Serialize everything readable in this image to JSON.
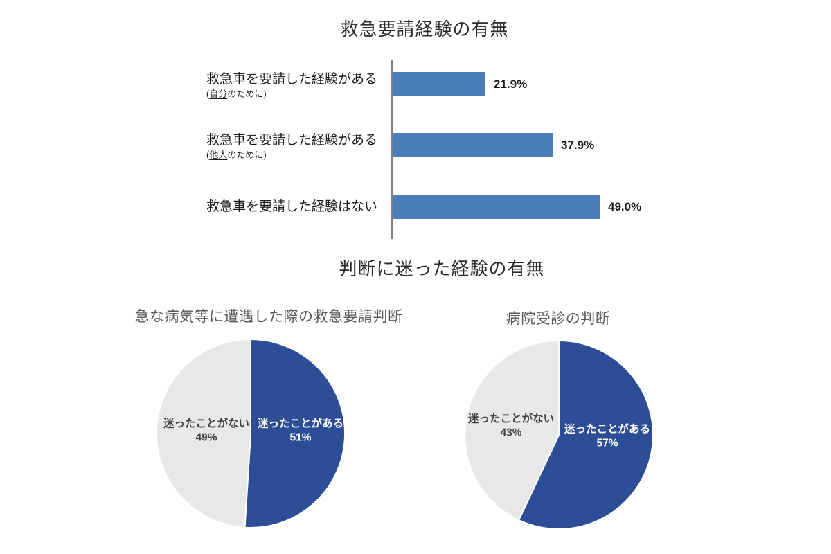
{
  "colors": {
    "bar_blue": "#4A7EBB",
    "pie_blue": "#2D4E96",
    "pie_gray": "#E8E8E8",
    "axis_gray": "#7f7f7f",
    "title_dark": "#2b2b2b",
    "pie_title_gray": "#595959"
  },
  "bar_chart": {
    "title": "救急要請経験の有無",
    "bars": [
      {
        "label": "救急車を要請した経験がある",
        "sub_prefix": "(",
        "sub_underline": "自分",
        "sub_suffix": "のために)",
        "value": 21.9,
        "value_label": "21.9%"
      },
      {
        "label": "救急車を要請した経験がある",
        "sub_prefix": "(",
        "sub_underline": "他人",
        "sub_suffix": "のために)",
        "value": 37.9,
        "value_label": "37.9%"
      },
      {
        "label": "救急車を要請した経験はない",
        "value": 49.0,
        "value_label": "49.0%"
      }
    ]
  },
  "pie_section": {
    "title": "判断に迷った経験の有無",
    "pies": [
      {
        "title": "急な病気等に遭遇した際の救急要請判断",
        "slices": [
          {
            "label": "迷ったことがある",
            "pct": 51,
            "pct_label": "51%",
            "color": "#2D4E96"
          },
          {
            "label": "迷ったことがない",
            "pct": 49,
            "pct_label": "49%",
            "color": "#E8E8E8"
          }
        ]
      },
      {
        "title": "病院受診の判断",
        "slices": [
          {
            "label": "迷ったことがある",
            "pct": 57,
            "pct_label": "57%",
            "color": "#2D4E96"
          },
          {
            "label": "迷ったことがない",
            "pct": 43,
            "pct_label": "43%",
            "color": "#E8E8E8"
          }
        ]
      }
    ]
  },
  "chart_data": [
    {
      "type": "bar",
      "orientation": "horizontal",
      "title": "救急要請経験の有無",
      "categories": [
        "救急車を要請した経験がある(自分のために)",
        "救急車を要請した経験がある(他人のために)",
        "救急車を要請した経験はない"
      ],
      "values": [
        21.9,
        37.9,
        49.0
      ],
      "value_labels": [
        "21.9%",
        "37.9%",
        "49.0%"
      ],
      "xlabel": "",
      "ylabel": "",
      "xlim": [
        0,
        52
      ],
      "grid": false,
      "legend": "none",
      "bar_color": "#4A7EBB"
    },
    {
      "type": "pie",
      "title": "急な病気等に遭遇した際の救急要請判断",
      "labels": [
        "迷ったことがある",
        "迷ったことがない"
      ],
      "values": [
        51,
        49
      ],
      "colors": [
        "#2D4E96",
        "#E8E8E8"
      ],
      "start_angle": "12 o'clock",
      "direction": "clockwise",
      "legend": "labels inside slices"
    },
    {
      "type": "pie",
      "title": "病院受診の判断",
      "labels": [
        "迷ったことがある",
        "迷ったことがない"
      ],
      "values": [
        57,
        43
      ],
      "colors": [
        "#2D4E96",
        "#E8E8E8"
      ],
      "start_angle": "12 o'clock",
      "direction": "clockwise",
      "legend": "labels inside slices"
    }
  ]
}
